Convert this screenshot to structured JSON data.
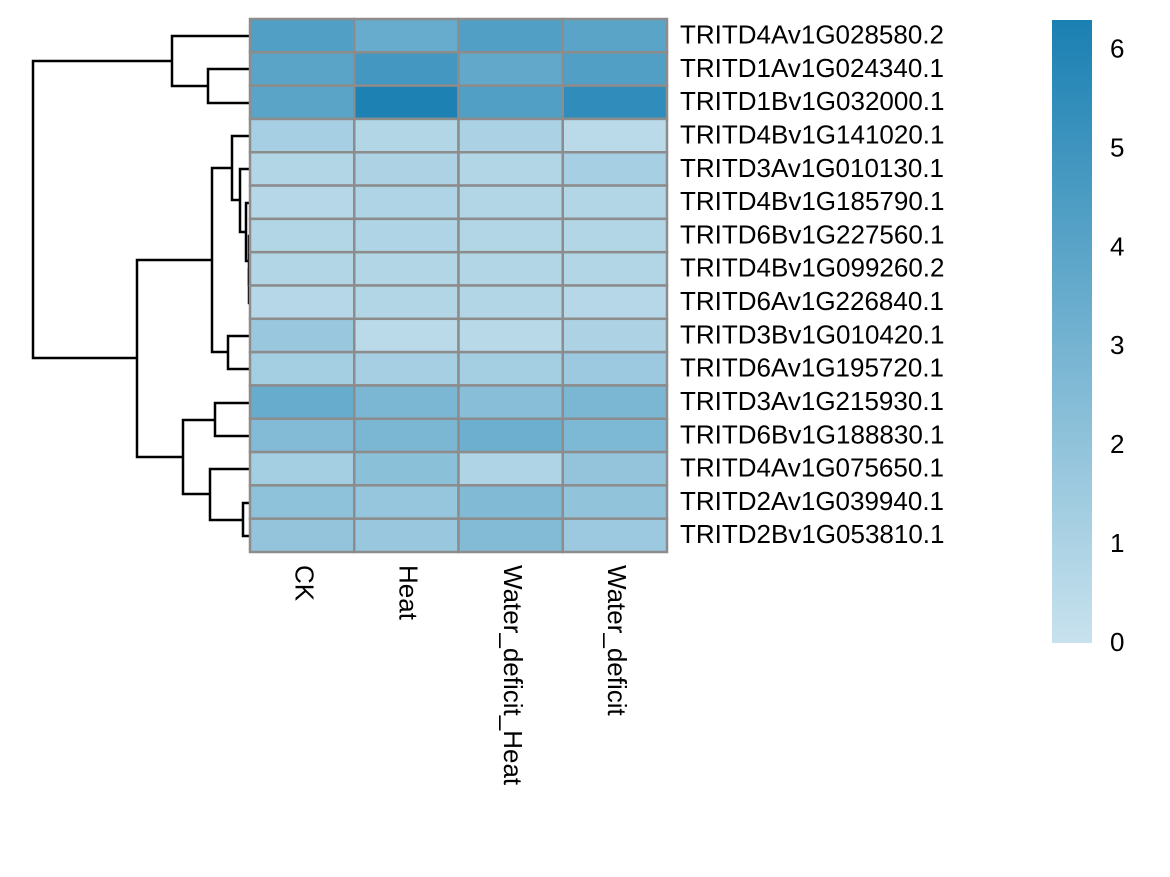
{
  "chart_data": {
    "type": "heatmap",
    "columns": [
      "CK",
      "Heat",
      "Water_deficit_Heat",
      "Water_deficit"
    ],
    "rows": [
      "TRITD4Av1G028580.2",
      "TRITD1Av1G024340.1",
      "TRITD1Bv1G032000.1",
      "TRITD4Bv1G141020.1",
      "TRITD3Av1G010130.1",
      "TRITD4Bv1G185790.1",
      "TRITD6Bv1G227560.1",
      "TRITD4Bv1G099260.2",
      "TRITD6Av1G226840.1",
      "TRITD3Bv1G010420.1",
      "TRITD6Av1G195720.1",
      "TRITD3Av1G215930.1",
      "TRITD6Bv1G188830.1",
      "TRITD4Av1G075650.1",
      "TRITD2Av1G039940.1",
      "TRITD2Bv1G053810.1"
    ],
    "values": [
      [
        4.3,
        3.5,
        4.3,
        4.0
      ],
      [
        4.0,
        4.8,
        3.7,
        4.3
      ],
      [
        4.0,
        6.2,
        4.3,
        5.5
      ],
      [
        1.2,
        0.8,
        1.1,
        0.5
      ],
      [
        0.8,
        1.0,
        0.8,
        1.2
      ],
      [
        0.7,
        0.9,
        0.8,
        0.8
      ],
      [
        0.8,
        0.9,
        0.8,
        0.8
      ],
      [
        0.8,
        0.8,
        0.8,
        0.8
      ],
      [
        0.7,
        0.8,
        0.8,
        0.7
      ],
      [
        1.7,
        0.5,
        0.6,
        1.0
      ],
      [
        1.3,
        1.2,
        1.3,
        1.6
      ],
      [
        3.5,
        2.8,
        2.3,
        2.8
      ],
      [
        2.5,
        2.8,
        3.3,
        2.7
      ],
      [
        1.3,
        2.2,
        0.9,
        1.9
      ],
      [
        2.1,
        1.8,
        2.6,
        2.0
      ],
      [
        1.9,
        1.7,
        2.5,
        1.6
      ]
    ],
    "colors": [
      "#c8e2ee",
      "#1a80b2"
    ],
    "zlim": [
      0,
      6.3
    ],
    "zticks": [
      0,
      1,
      2,
      3,
      4,
      5,
      6
    ]
  }
}
